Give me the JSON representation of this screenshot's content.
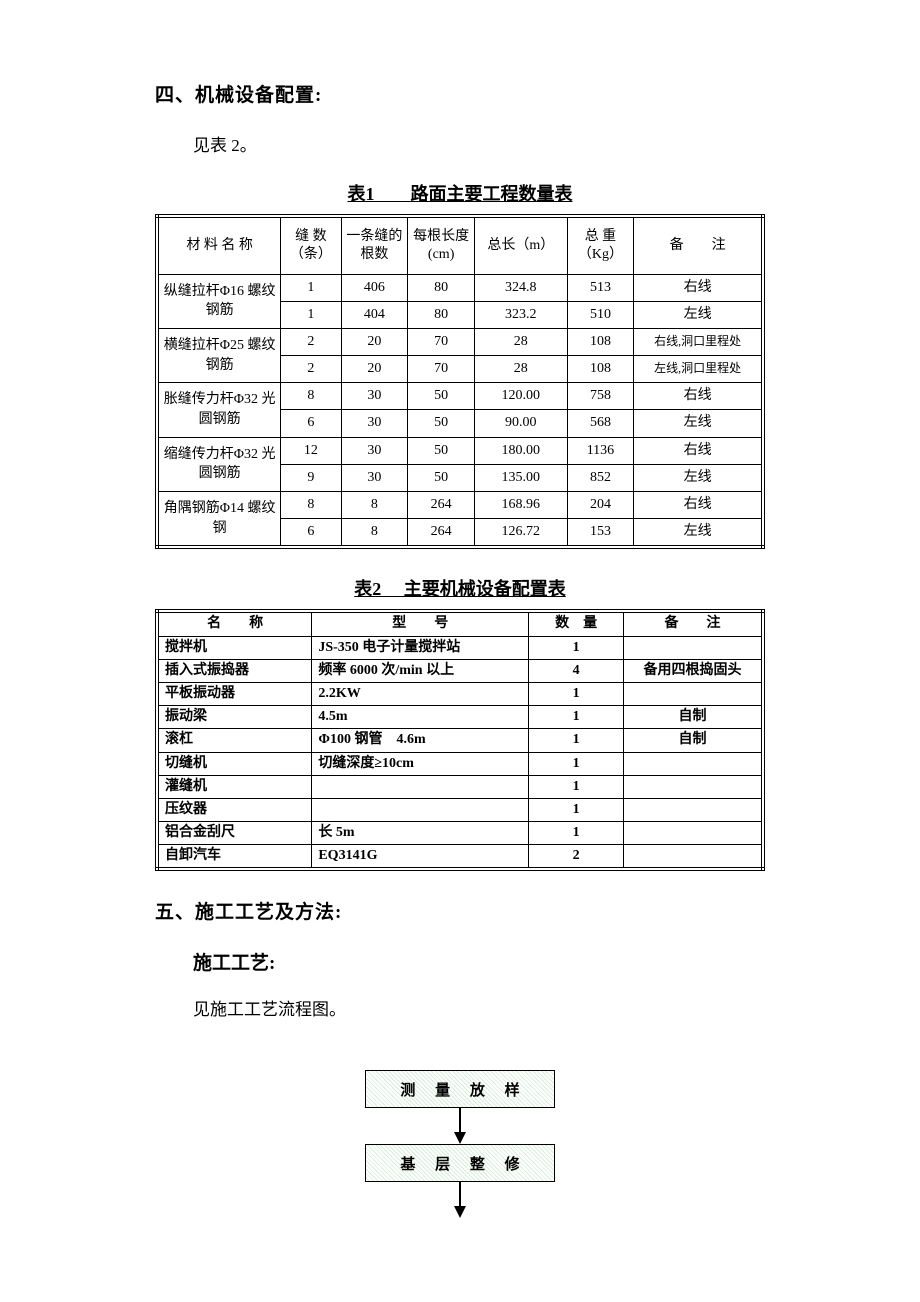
{
  "section4": {
    "heading": "四、机械设备配置:",
    "body": "见表 2。"
  },
  "table1": {
    "title": "表1　　路面主要工程数量表",
    "headers": {
      "name": "材 料 名 称",
      "seam_count": "缝 数（条）",
      "per_seam": "一条缝的根数",
      "each_len": "每根长度(cm)",
      "total_len": "总长（m）",
      "total_weight": "总 重（Kg）",
      "remark": "备　　注"
    },
    "groups": [
      {
        "name": "纵缝拉杆Φ16 螺纹钢筋",
        "rows": [
          {
            "seam": "1",
            "per": "406",
            "len": "80",
            "total": "324.8",
            "weight": "513",
            "remark": "右线"
          },
          {
            "seam": "1",
            "per": "404",
            "len": "80",
            "total": "323.2",
            "weight": "510",
            "remark": "左线"
          }
        ]
      },
      {
        "name": "横缝拉杆Φ25 螺纹钢筋",
        "rows": [
          {
            "seam": "2",
            "per": "20",
            "len": "70",
            "total": "28",
            "weight": "108",
            "remark": "右线,洞口里程处",
            "small": true
          },
          {
            "seam": "2",
            "per": "20",
            "len": "70",
            "total": "28",
            "weight": "108",
            "remark": "左线,洞口里程处",
            "small": true
          }
        ]
      },
      {
        "name": "胀缝传力杆Φ32 光圆钢筋",
        "rows": [
          {
            "seam": "8",
            "per": "30",
            "len": "50",
            "total": "120.00",
            "weight": "758",
            "remark": "右线"
          },
          {
            "seam": "6",
            "per": "30",
            "len": "50",
            "total": "90.00",
            "weight": "568",
            "remark": "左线"
          }
        ]
      },
      {
        "name": "缩缝传力杆Φ32 光圆钢筋",
        "rows": [
          {
            "seam": "12",
            "per": "30",
            "len": "50",
            "total": "180.00",
            "weight": "1136",
            "remark": "右线"
          },
          {
            "seam": "9",
            "per": "30",
            "len": "50",
            "total": "135.00",
            "weight": "852",
            "remark": "左线"
          }
        ]
      },
      {
        "name": "角隅钢筋Φ14 螺纹钢",
        "rows": [
          {
            "seam": "8",
            "per": "8",
            "len": "264",
            "total": "168.96",
            "weight": "204",
            "remark": "右线"
          },
          {
            "seam": "6",
            "per": "8",
            "len": "264",
            "total": "126.72",
            "weight": "153",
            "remark": "左线"
          }
        ]
      }
    ],
    "border_color": "#000000",
    "background_color": "#ffffff"
  },
  "table2": {
    "title": "表2　 主要机械设备配置表",
    "headers": {
      "name": "名　　称",
      "model": "型　　号",
      "qty": "数　量",
      "remark": "备　　注"
    },
    "rows": [
      {
        "name": "搅拌机",
        "model": "JS-350 电子计量搅拌站",
        "qty": "1",
        "remark": ""
      },
      {
        "name": "插入式振捣器",
        "model": "频率 6000 次/min 以上",
        "qty": "4",
        "remark": "备用四根捣固头"
      },
      {
        "name": "平板振动器",
        "model": "2.2KW",
        "qty": "1",
        "remark": ""
      },
      {
        "name": "振动梁",
        "model": "4.5m",
        "qty": "1",
        "remark": "自制"
      },
      {
        "name": "滚杠",
        "model": "Φ100 钢管　4.6m",
        "qty": "1",
        "remark": "自制"
      },
      {
        "name": "切缝机",
        "model": "切缝深度≥10cm",
        "qty": "1",
        "remark": ""
      },
      {
        "name": "灌缝机",
        "model": "",
        "qty": "1",
        "remark": ""
      },
      {
        "name": "压纹器",
        "model": "",
        "qty": "1",
        "remark": ""
      },
      {
        "name": "铝合金刮尺",
        "model": "长 5m",
        "qty": "1",
        "remark": ""
      },
      {
        "name": "自卸汽车",
        "model": "EQ3141G",
        "qty": "2",
        "remark": ""
      }
    ],
    "border_color": "#000000",
    "background_color": "#ffffff"
  },
  "section5": {
    "heading": "五、施工工艺及方法:",
    "sub": "施工工艺:",
    "body": "见施工工艺流程图。"
  },
  "flowchart": {
    "nodes": [
      {
        "label": "测 量 放 样"
      },
      {
        "label": "基 层 整 修"
      }
    ],
    "box_bg": "#e6f3e7",
    "box_border": "#000000",
    "arrow_color": "#000000"
  }
}
